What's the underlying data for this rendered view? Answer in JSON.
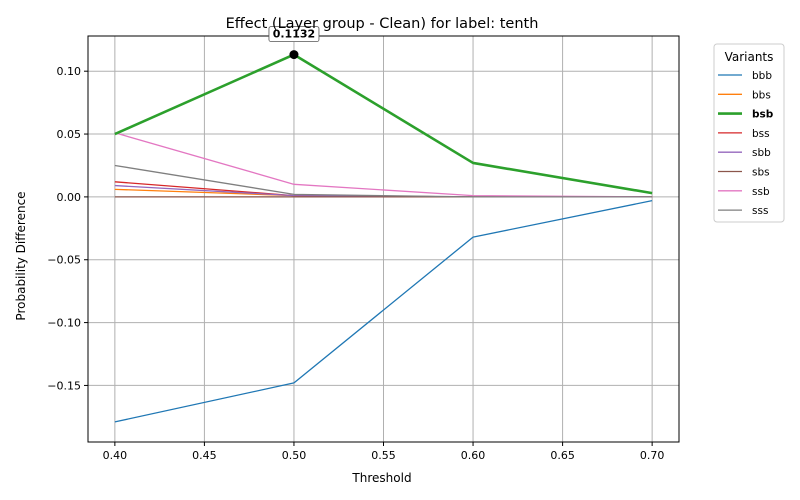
{
  "chart_data": {
    "type": "line",
    "title": "Effect (Layer group - Clean) for label: tenth",
    "xlabel": "Threshold",
    "ylabel": "Probability Difference",
    "x": [
      0.4,
      0.5,
      0.6,
      0.7
    ],
    "x_ticks": [
      "0.40",
      "0.45",
      "0.50",
      "0.55",
      "0.60",
      "0.65",
      "0.70"
    ],
    "y_ticks": [
      "0.10",
      "0.05",
      "0.00",
      "−0.05",
      "−0.10",
      "−0.15"
    ],
    "xlim": [
      0.385,
      0.715
    ],
    "ylim": [
      -0.195,
      0.128
    ],
    "grid": true,
    "legend": {
      "title": "Variants",
      "position": "outside-right"
    },
    "series": [
      {
        "name": "bbb",
        "color": "#1f77b4",
        "values": [
          -0.179,
          -0.148,
          -0.032,
          -0.003
        ],
        "highlight": false
      },
      {
        "name": "bbs",
        "color": "#ff7f0e",
        "values": [
          0.006,
          0.001,
          0.0,
          0.0
        ],
        "highlight": false
      },
      {
        "name": "bsb",
        "color": "#2ca02c",
        "values": [
          0.05,
          0.1132,
          0.027,
          0.003
        ],
        "highlight": true
      },
      {
        "name": "bss",
        "color": "#d62728",
        "values": [
          0.012,
          0.001,
          0.0,
          0.0
        ],
        "highlight": false
      },
      {
        "name": "sbb",
        "color": "#9467bd",
        "values": [
          0.009,
          0.001,
          0.0,
          0.0
        ],
        "highlight": false
      },
      {
        "name": "sbs",
        "color": "#8c564b",
        "values": [
          0.0,
          0.0,
          0.0,
          0.0
        ],
        "highlight": false
      },
      {
        "name": "ssb",
        "color": "#e377c2",
        "values": [
          0.051,
          0.01,
          0.001,
          0.0
        ],
        "highlight": false
      },
      {
        "name": "sss",
        "color": "#7f7f7f",
        "values": [
          0.025,
          0.002,
          0.0,
          0.0
        ],
        "highlight": false
      }
    ],
    "annotation": {
      "text": "0.1132",
      "x": 0.5,
      "y": 0.1132
    }
  }
}
